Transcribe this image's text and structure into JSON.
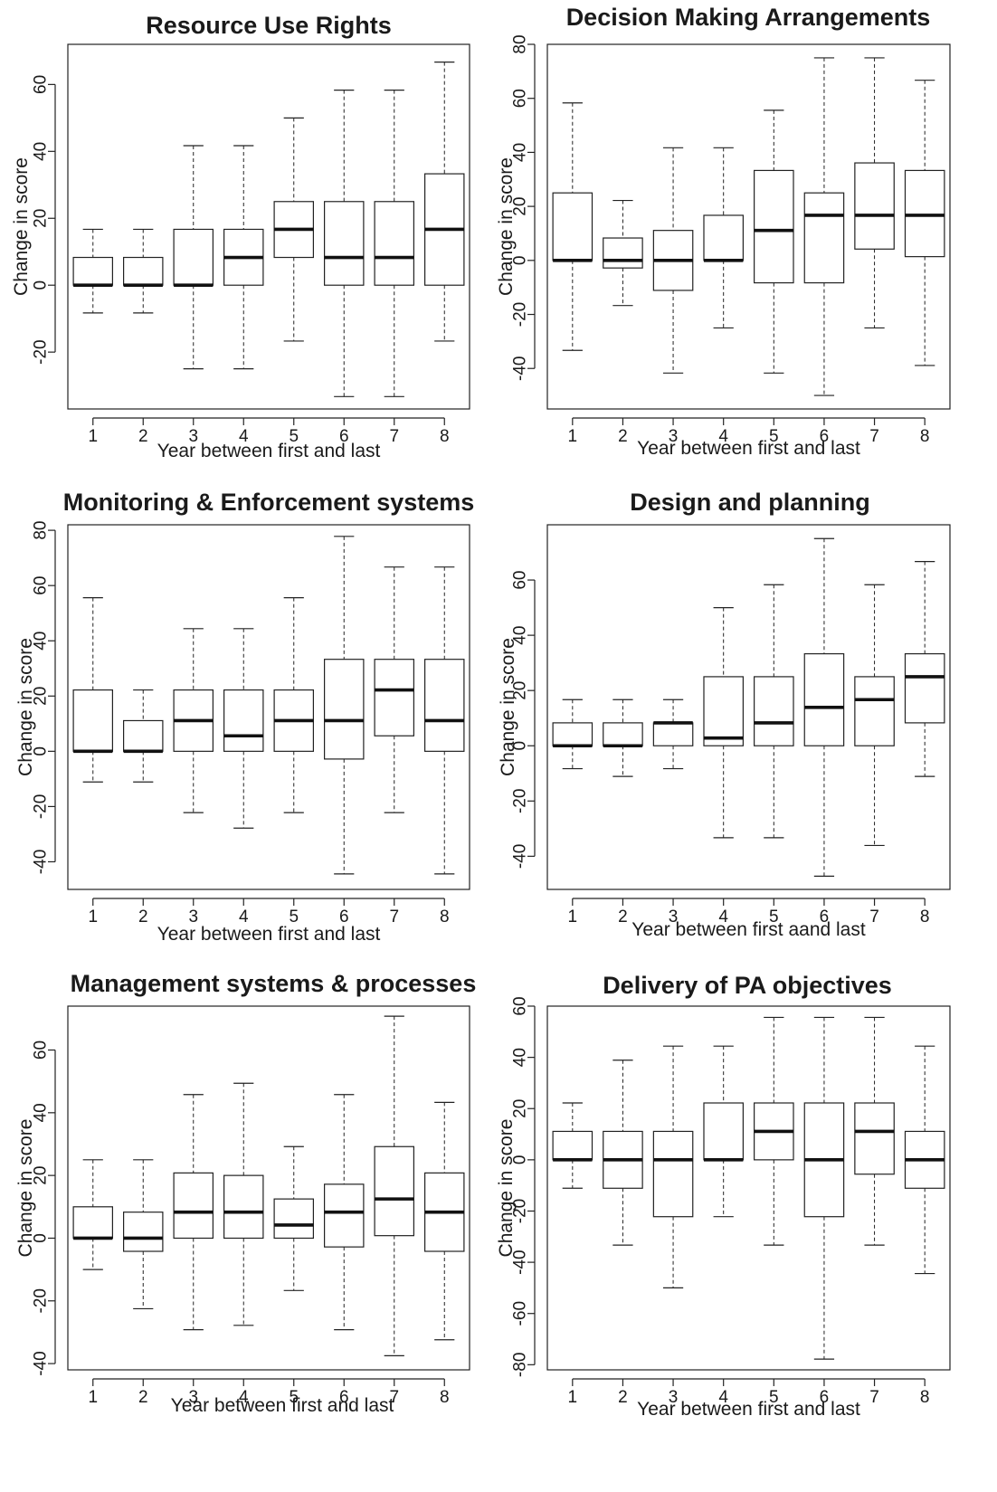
{
  "chart_data": [
    {
      "type": "boxplot",
      "title": "Resource Use Rights",
      "xlabel": "Year between first and last",
      "ylabel": "Change in score",
      "categories": [
        "1",
        "2",
        "3",
        "4",
        "5",
        "6",
        "7",
        "8"
      ],
      "ylim": [
        -37,
        72
      ],
      "yticks": [
        -20,
        0,
        20,
        40,
        60
      ],
      "boxes": [
        {
          "min": -8.3,
          "q1": 0,
          "median": 0,
          "q3": 8.3,
          "max": 16.7
        },
        {
          "min": -8.3,
          "q1": 0,
          "median": 0,
          "q3": 8.3,
          "max": 16.7
        },
        {
          "min": -25,
          "q1": 0,
          "median": 0,
          "q3": 16.7,
          "max": 41.7
        },
        {
          "min": -25,
          "q1": 0,
          "median": 8.3,
          "q3": 16.7,
          "max": 41.7
        },
        {
          "min": -16.7,
          "q1": 8.3,
          "median": 16.7,
          "q3": 25,
          "max": 50
        },
        {
          "min": -33.3,
          "q1": 0,
          "median": 8.3,
          "q3": 25,
          "max": 58.3
        },
        {
          "min": -33.3,
          "q1": 0,
          "median": 8.3,
          "q3": 25,
          "max": 58.3
        },
        {
          "min": -16.7,
          "q1": 0,
          "median": 16.7,
          "q3": 33.3,
          "max": 66.7
        }
      ]
    },
    {
      "type": "boxplot",
      "title": "Decision Making Arrangements",
      "xlabel": "Year between first and last",
      "ylabel": "Change in score",
      "categories": [
        "1",
        "2",
        "3",
        "4",
        "5",
        "6",
        "7",
        "8"
      ],
      "ylim": [
        -55,
        80
      ],
      "yticks": [
        -40,
        -20,
        0,
        20,
        40,
        60,
        80
      ],
      "boxes": [
        {
          "min": -33.3,
          "q1": 0,
          "median": 0,
          "q3": 25,
          "max": 58.3
        },
        {
          "min": -16.7,
          "q1": -2.8,
          "median": 0,
          "q3": 8.3,
          "max": 22.2
        },
        {
          "min": -41.7,
          "q1": -11.1,
          "median": 0,
          "q3": 11.1,
          "max": 41.7
        },
        {
          "min": -25,
          "q1": 0,
          "median": 0,
          "q3": 16.7,
          "max": 41.7
        },
        {
          "min": -41.7,
          "q1": -8.3,
          "median": 11.1,
          "q3": 33.3,
          "max": 55.6
        },
        {
          "min": -50,
          "q1": -8.3,
          "median": 16.7,
          "q3": 25,
          "max": 75
        },
        {
          "min": -25,
          "q1": 4.2,
          "median": 16.7,
          "q3": 36.1,
          "max": 75
        },
        {
          "min": -38.9,
          "q1": 1.4,
          "median": 16.7,
          "q3": 33.3,
          "max": 66.7
        }
      ]
    },
    {
      "type": "boxplot",
      "title": "Monitoring & Enforcement systems",
      "xlabel": "Year between first and last",
      "ylabel": "Change in score",
      "categories": [
        "1",
        "2",
        "3",
        "4",
        "5",
        "6",
        "7",
        "8"
      ],
      "ylim": [
        -50,
        82
      ],
      "yticks": [
        -40,
        -20,
        0,
        20,
        40,
        60,
        80
      ],
      "boxes": [
        {
          "min": -11.1,
          "q1": 0,
          "median": 0,
          "q3": 22.2,
          "max": 55.6
        },
        {
          "min": -11.1,
          "q1": 0,
          "median": 0,
          "q3": 11.1,
          "max": 22.2
        },
        {
          "min": -22.2,
          "q1": 0,
          "median": 11.1,
          "q3": 22.2,
          "max": 44.4
        },
        {
          "min": -27.8,
          "q1": 0,
          "median": 5.6,
          "q3": 22.2,
          "max": 44.4
        },
        {
          "min": -22.2,
          "q1": 0,
          "median": 11.1,
          "q3": 22.2,
          "max": 55.6
        },
        {
          "min": -44.4,
          "q1": -2.8,
          "median": 11.1,
          "q3": 33.3,
          "max": 77.8
        },
        {
          "min": -22.2,
          "q1": 5.6,
          "median": 22.2,
          "q3": 33.3,
          "max": 66.7
        },
        {
          "min": -44.4,
          "q1": 0,
          "median": 11.1,
          "q3": 33.3,
          "max": 66.7
        }
      ]
    },
    {
      "type": "boxplot",
      "title": "Design and planning",
      "xlabel": "Year between first aand last",
      "ylabel": "Change in score",
      "categories": [
        "1",
        "2",
        "3",
        "4",
        "5",
        "6",
        "7",
        "8"
      ],
      "ylim": [
        -52,
        80
      ],
      "yticks": [
        -40,
        -20,
        0,
        20,
        40,
        60
      ],
      "boxes": [
        {
          "min": -8.3,
          "q1": 0,
          "median": 0,
          "q3": 8.3,
          "max": 16.7
        },
        {
          "min": -11.1,
          "q1": 0,
          "median": 0,
          "q3": 8.3,
          "max": 16.7
        },
        {
          "min": -8.3,
          "q1": 0,
          "median": 8.3,
          "q3": 8.3,
          "max": 16.7
        },
        {
          "min": -33.3,
          "q1": 0,
          "median": 2.8,
          "q3": 25,
          "max": 50
        },
        {
          "min": -33.3,
          "q1": 0,
          "median": 8.3,
          "q3": 25,
          "max": 58.3
        },
        {
          "min": -47.2,
          "q1": 0,
          "median": 13.9,
          "q3": 33.3,
          "max": 75
        },
        {
          "min": -36.1,
          "q1": 0,
          "median": 16.7,
          "q3": 25,
          "max": 58.3
        },
        {
          "min": -11.1,
          "q1": 8.3,
          "median": 25,
          "q3": 33.3,
          "max": 66.7
        }
      ]
    },
    {
      "type": "boxplot",
      "title": "Management systems & processes",
      "xlabel": "Year between first and last",
      "ylabel": "Change in score",
      "categories": [
        "1",
        "2",
        "3",
        "4",
        "5",
        "6",
        "7",
        "8"
      ],
      "ylim": [
        -42,
        74
      ],
      "yticks": [
        -40,
        -20,
        0,
        20,
        40,
        60
      ],
      "boxes": [
        {
          "min": -10,
          "q1": 0,
          "median": 0,
          "q3": 10,
          "max": 25
        },
        {
          "min": -22.5,
          "q1": -4.2,
          "median": 0,
          "q3": 8.3,
          "max": 25
        },
        {
          "min": -29.2,
          "q1": 0,
          "median": 8.3,
          "q3": 20.8,
          "max": 45.8
        },
        {
          "min": -27.8,
          "q1": 0,
          "median": 8.3,
          "q3": 20,
          "max": 49.4
        },
        {
          "min": -16.7,
          "q1": 0,
          "median": 4.2,
          "q3": 12.5,
          "max": 29.2
        },
        {
          "min": -29.2,
          "q1": -2.8,
          "median": 8.3,
          "q3": 17.2,
          "max": 45.8
        },
        {
          "min": -37.5,
          "q1": 0.8,
          "median": 12.5,
          "q3": 29.2,
          "max": 70.8
        },
        {
          "min": -32.4,
          "q1": -4.2,
          "median": 8.3,
          "q3": 20.8,
          "max": 43.3
        }
      ]
    },
    {
      "type": "boxplot",
      "title": "Delivery of PA objectives",
      "xlabel": "Year between first and last",
      "ylabel": "Change in score",
      "categories": [
        "1",
        "2",
        "3",
        "4",
        "5",
        "6",
        "7",
        "8"
      ],
      "ylim": [
        -82,
        60
      ],
      "yticks": [
        -80,
        -60,
        -40,
        -20,
        0,
        20,
        40,
        60
      ],
      "boxes": [
        {
          "min": -11.1,
          "q1": 0,
          "median": 0,
          "q3": 11.1,
          "max": 22.2
        },
        {
          "min": -33.3,
          "q1": -11.1,
          "median": 0,
          "q3": 11.1,
          "max": 38.9
        },
        {
          "min": -50,
          "q1": -22.2,
          "median": 0,
          "q3": 11.1,
          "max": 44.4
        },
        {
          "min": -22.2,
          "q1": 0,
          "median": 0,
          "q3": 22.2,
          "max": 44.4
        },
        {
          "min": -33.3,
          "q1": 0,
          "median": 11.1,
          "q3": 22.2,
          "max": 55.6
        },
        {
          "min": -77.8,
          "q1": -22.2,
          "median": 0,
          "q3": 22.2,
          "max": 55.6
        },
        {
          "min": -33.3,
          "q1": -5.6,
          "median": 11.1,
          "q3": 22.2,
          "max": 55.6
        },
        {
          "min": -44.4,
          "q1": -11.1,
          "median": 0,
          "q3": 11.1,
          "max": 44.4
        }
      ]
    }
  ]
}
